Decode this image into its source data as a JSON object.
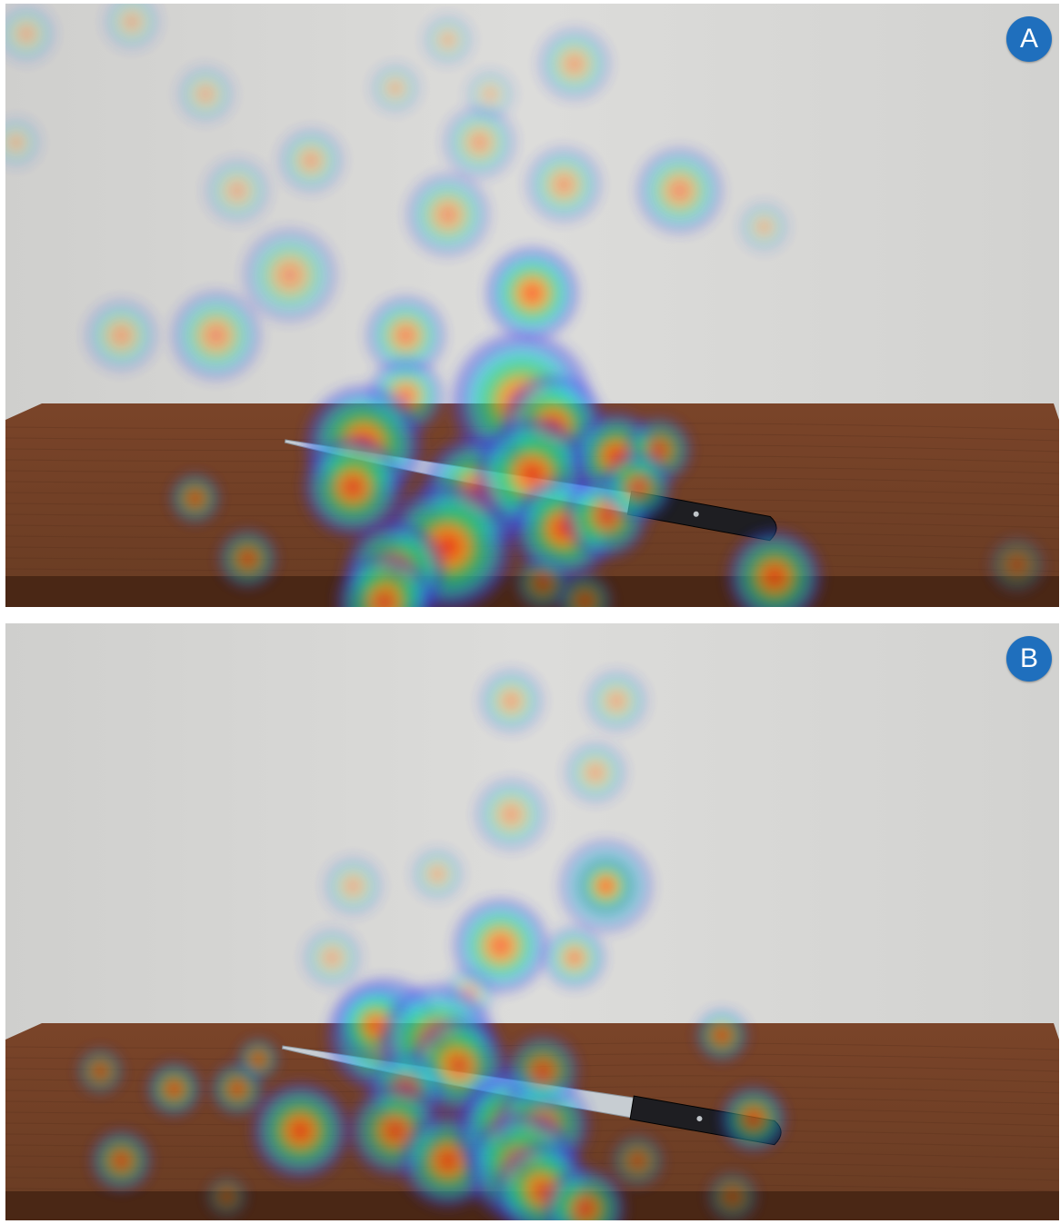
{
  "panels": [
    {
      "label": "A",
      "knife_angle_deg": 7,
      "hotspots": [
        [
          0.02,
          0.05,
          40,
          0.25
        ],
        [
          0.12,
          0.03,
          40,
          0.2
        ],
        [
          0.19,
          0.15,
          40,
          0.22
        ],
        [
          0.42,
          0.06,
          35,
          0.2
        ],
        [
          0.54,
          0.1,
          45,
          0.5
        ],
        [
          0.37,
          0.14,
          35,
          0.2
        ],
        [
          0.29,
          0.26,
          42,
          0.4
        ],
        [
          0.45,
          0.23,
          45,
          0.5
        ],
        [
          0.53,
          0.3,
          45,
          0.6
        ],
        [
          0.42,
          0.35,
          48,
          0.7
        ],
        [
          0.22,
          0.31,
          45,
          0.25
        ],
        [
          0.01,
          0.23,
          35,
          0.2
        ],
        [
          0.46,
          0.15,
          35,
          0.15
        ],
        [
          0.64,
          0.31,
          48,
          0.8
        ],
        [
          0.72,
          0.37,
          35,
          0.2
        ],
        [
          0.27,
          0.45,
          55,
          0.65
        ],
        [
          0.2,
          0.55,
          50,
          0.8
        ],
        [
          0.11,
          0.55,
          45,
          0.5
        ],
        [
          0.38,
          0.55,
          42,
          0.95
        ],
        [
          0.5,
          0.48,
          42,
          1.45
        ],
        [
          0.49,
          0.66,
          55,
          2.0
        ],
        [
          0.52,
          0.7,
          45,
          1.6
        ],
        [
          0.38,
          0.65,
          38,
          1.1
        ],
        [
          0.34,
          0.73,
          50,
          1.7
        ],
        [
          0.33,
          0.8,
          45,
          1.5
        ],
        [
          0.45,
          0.81,
          50,
          1.6
        ],
        [
          0.42,
          0.9,
          55,
          1.7
        ],
        [
          0.37,
          0.94,
          45,
          1.5
        ],
        [
          0.36,
          0.99,
          45,
          1.4
        ],
        [
          0.5,
          0.78,
          50,
          1.6
        ],
        [
          0.53,
          0.87,
          45,
          1.6
        ],
        [
          0.58,
          0.75,
          40,
          1.5
        ],
        [
          0.62,
          0.74,
          35,
          1.0
        ],
        [
          0.57,
          0.85,
          40,
          1.3
        ],
        [
          0.6,
          0.8,
          35,
          1.1
        ],
        [
          0.18,
          0.82,
          30,
          0.7
        ],
        [
          0.23,
          0.92,
          35,
          0.7
        ],
        [
          0.73,
          0.95,
          45,
          1.3
        ],
        [
          0.96,
          0.93,
          40,
          0.2
        ],
        [
          0.51,
          0.96,
          35,
          0.5
        ],
        [
          0.55,
          0.99,
          35,
          0.5
        ]
      ]
    },
    {
      "label": "B",
      "knife_angle_deg": 8,
      "hotspots": [
        [
          0.48,
          0.13,
          40,
          0.5
        ],
        [
          0.58,
          0.13,
          40,
          0.4
        ],
        [
          0.56,
          0.25,
          40,
          0.4
        ],
        [
          0.48,
          0.32,
          45,
          0.5
        ],
        [
          0.33,
          0.44,
          40,
          0.3
        ],
        [
          0.41,
          0.42,
          35,
          0.3
        ],
        [
          0.57,
          0.44,
          50,
          0.9
        ],
        [
          0.57,
          0.44,
          30,
          1.0
        ],
        [
          0.47,
          0.54,
          45,
          1.3
        ],
        [
          0.54,
          0.56,
          35,
          0.8
        ],
        [
          0.31,
          0.56,
          40,
          0.3
        ],
        [
          0.44,
          0.62,
          35,
          0.3
        ],
        [
          0.36,
          0.69,
          50,
          1.6
        ],
        [
          0.35,
          0.67,
          40,
          0.9
        ],
        [
          0.41,
          0.7,
          50,
          1.6
        ],
        [
          0.43,
          0.74,
          45,
          1.4
        ],
        [
          0.38,
          0.78,
          40,
          0.9
        ],
        [
          0.28,
          0.85,
          45,
          1.4
        ],
        [
          0.37,
          0.85,
          45,
          1.2
        ],
        [
          0.42,
          0.9,
          45,
          1.3
        ],
        [
          0.48,
          0.82,
          45,
          1.2
        ],
        [
          0.48,
          0.85,
          50,
          1.5
        ],
        [
          0.51,
          0.84,
          45,
          1.3
        ],
        [
          0.49,
          0.91,
          50,
          1.5
        ],
        [
          0.51,
          0.95,
          45,
          1.4
        ],
        [
          0.55,
          0.98,
          40,
          1.2
        ],
        [
          0.51,
          0.75,
          40,
          0.9
        ],
        [
          0.09,
          0.75,
          30,
          0.5
        ],
        [
          0.16,
          0.78,
          30,
          0.9
        ],
        [
          0.22,
          0.78,
          30,
          0.8
        ],
        [
          0.24,
          0.73,
          25,
          0.7
        ],
        [
          0.11,
          0.9,
          35,
          0.8
        ],
        [
          0.68,
          0.69,
          30,
          0.8
        ],
        [
          0.71,
          0.83,
          35,
          1.0
        ],
        [
          0.69,
          0.96,
          35,
          0.3
        ],
        [
          0.21,
          0.96,
          30,
          0.2
        ],
        [
          0.6,
          0.9,
          35,
          0.4
        ]
      ]
    }
  ],
  "colors": {
    "badge": "#1f6fbd",
    "wall": "#dcdcda",
    "table_top": "#6b3d24",
    "table_edge": "#4a2715"
  }
}
